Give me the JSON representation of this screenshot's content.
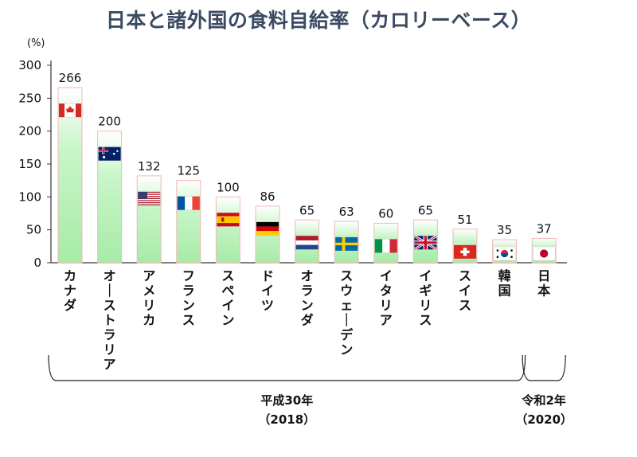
{
  "title": "日本と諸外国の食料自給率（カロリーベース）",
  "chart_data": {
    "type": "bar",
    "unit": "(%)",
    "ylim": [
      0,
      300
    ],
    "yticks": [
      0,
      50,
      100,
      150,
      200,
      250,
      300
    ],
    "grid": false,
    "categories": [
      "カナダ",
      "オーストラリア",
      "アメリカ",
      "フランス",
      "スペイン",
      "ドイツ",
      "オランダ",
      "スウェーデン",
      "イタリア",
      "イギリス",
      "スイス",
      "韓国",
      "日本"
    ],
    "values": [
      266,
      200,
      132,
      125,
      100,
      86,
      65,
      63,
      60,
      65,
      51,
      35,
      37
    ],
    "flags": [
      "canada-flag",
      "australia-flag",
      "usa-flag",
      "france-flag",
      "spain-flag",
      "germany-flag",
      "netherlands-flag",
      "sweden-flag",
      "italy-flag",
      "uk-flag",
      "switzerland-flag",
      "korea-flag",
      "japan-flag"
    ],
    "bar_color": "#b8f0b8",
    "bar_border_color": "#f0b8b8",
    "groups": [
      {
        "label_line1": "平成30年",
        "label_line2": "（2018）",
        "from": 0,
        "to": 11
      },
      {
        "label_line1": "令和2年",
        "label_line2": "（2020）",
        "from": 12,
        "to": 12
      }
    ]
  }
}
